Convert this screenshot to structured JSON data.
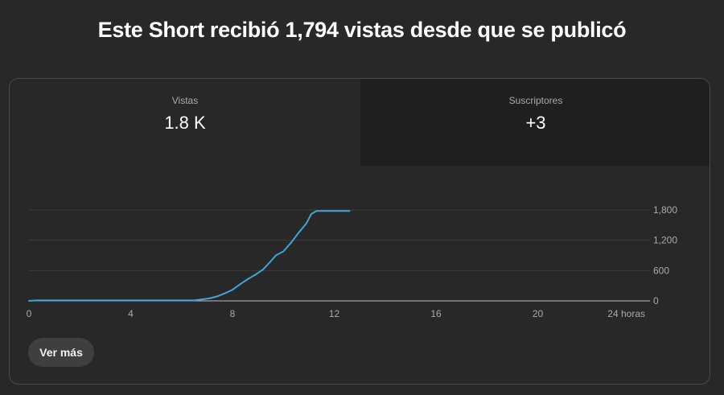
{
  "headline": "Este Short recibió 1,794 vistas desde que se publicó",
  "tabs": [
    {
      "label": "Vistas",
      "value": "1.8 K"
    },
    {
      "label": "Suscriptores",
      "value": "+3"
    }
  ],
  "see_more_label": "Ver más",
  "colors": {
    "line": "#3ea6d8",
    "grid": "#3d3d3d",
    "baseline": "#bdbdbd",
    "tick_text": "#aaaaaa"
  },
  "chart_data": {
    "type": "line",
    "xlim": [
      0,
      24
    ],
    "ylim": [
      0,
      1800
    ],
    "x_ticks": [
      {
        "value": 0,
        "label": "0"
      },
      {
        "value": 4,
        "label": "4"
      },
      {
        "value": 8,
        "label": "8"
      },
      {
        "value": 12,
        "label": "12"
      },
      {
        "value": 16,
        "label": "16"
      },
      {
        "value": 20,
        "label": "20"
      },
      {
        "value": 24,
        "label": "24 horas"
      }
    ],
    "y_ticks": [
      {
        "value": 0,
        "label": "0"
      },
      {
        "value": 600,
        "label": "600"
      },
      {
        "value": 1200,
        "label": "1,200"
      },
      {
        "value": 1800,
        "label": "1,800"
      }
    ],
    "grid": true,
    "series": [
      {
        "x": [
          0,
          0.3,
          1,
          2,
          3,
          4,
          5,
          6,
          6.5,
          6.8,
          7.1,
          7.4,
          7.7,
          8.0,
          8.3,
          8.6,
          8.9,
          9.2,
          9.5,
          9.7,
          10.0,
          10.3,
          10.6,
          10.9,
          11.1,
          11.3,
          12.6
        ],
        "y": [
          0,
          10,
          10,
          10,
          10,
          10,
          10,
          10,
          10,
          30,
          50,
          90,
          150,
          220,
          330,
          430,
          520,
          620,
          780,
          900,
          980,
          1150,
          1350,
          1530,
          1720,
          1780,
          1780
        ]
      }
    ]
  }
}
